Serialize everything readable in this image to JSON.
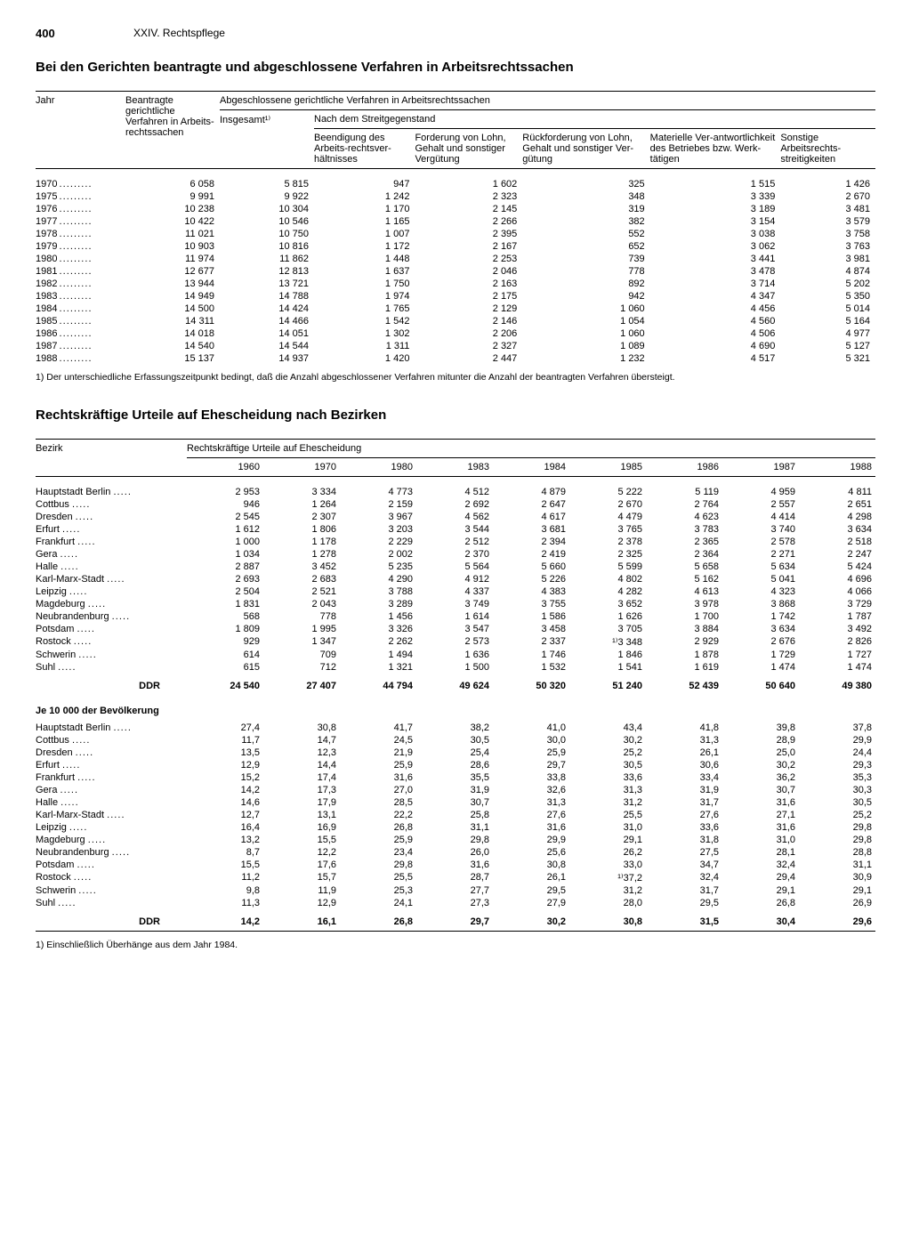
{
  "page_number": "400",
  "section": "XXIV. Rechtspflege",
  "table1": {
    "title": "Bei den Gerichten beantragte und abgeschlossene Verfahren in Arbeitsrechtssachen",
    "col_year": "Jahr",
    "col_beantragte": "Beantragte gerichtliche Verfahren in Arbeits-rechtssachen",
    "col_abgeschlossen": "Abgeschlossene gerichtliche Verfahren in Arbeitsrechtssachen",
    "col_insgesamt": "Insgesamt¹⁾",
    "col_nachdem": "Nach dem Streitgegenstand",
    "sub_beendigung": "Beendigung des Arbeits-rechtsver-hältnisses",
    "sub_forderung": "Forderung von Lohn, Gehalt und sonstiger Vergütung",
    "sub_rueckforderung": "Rückforderung von Lohn, Gehalt und sonstiger Ver-gütung",
    "sub_materielle": "Materielle Ver-antwortlichkeit des Betriebes bzw. Werk-tätigen",
    "sub_sonstige": "Sonstige Arbeitsrechts-streitigkeiten",
    "rows": [
      {
        "y": "1970",
        "c": [
          "6 058",
          "5 815",
          "947",
          "1 602",
          "325",
          "1 515",
          "1 426"
        ]
      },
      {
        "y": "1975",
        "c": [
          "9 991",
          "9 922",
          "1 242",
          "2 323",
          "348",
          "3 339",
          "2 670"
        ]
      },
      {
        "y": "1976",
        "c": [
          "10 238",
          "10 304",
          "1 170",
          "2 145",
          "319",
          "3 189",
          "3 481"
        ]
      },
      {
        "y": "1977",
        "c": [
          "10 422",
          "10 546",
          "1 165",
          "2 266",
          "382",
          "3 154",
          "3 579"
        ]
      },
      {
        "y": "1978",
        "c": [
          "11 021",
          "10 750",
          "1 007",
          "2 395",
          "552",
          "3 038",
          "3 758"
        ]
      },
      {
        "y": "1979",
        "c": [
          "10 903",
          "10 816",
          "1 172",
          "2 167",
          "652",
          "3 062",
          "3 763"
        ]
      },
      {
        "y": "1980",
        "c": [
          "11 974",
          "11 862",
          "1 448",
          "2 253",
          "739",
          "3 441",
          "3 981"
        ]
      },
      {
        "y": "1981",
        "c": [
          "12 677",
          "12 813",
          "1 637",
          "2 046",
          "778",
          "3 478",
          "4 874"
        ]
      },
      {
        "y": "1982",
        "c": [
          "13 944",
          "13 721",
          "1 750",
          "2 163",
          "892",
          "3 714",
          "5 202"
        ]
      },
      {
        "y": "1983",
        "c": [
          "14 949",
          "14 788",
          "1 974",
          "2 175",
          "942",
          "4 347",
          "5 350"
        ]
      },
      {
        "y": "1984",
        "c": [
          "14 500",
          "14 424",
          "1 765",
          "2 129",
          "1 060",
          "4 456",
          "5 014"
        ]
      },
      {
        "y": "1985",
        "c": [
          "14 311",
          "14 466",
          "1 542",
          "2 146",
          "1 054",
          "4 560",
          "5 164"
        ]
      },
      {
        "y": "1986",
        "c": [
          "14 018",
          "14 051",
          "1 302",
          "2 206",
          "1 060",
          "4 506",
          "4 977"
        ]
      },
      {
        "y": "1987",
        "c": [
          "14 540",
          "14 544",
          "1 311",
          "2 327",
          "1 089",
          "4 690",
          "5 127"
        ]
      },
      {
        "y": "1988",
        "c": [
          "15 137",
          "14 937",
          "1 420",
          "2 447",
          "1 232",
          "4 517",
          "5 321"
        ]
      }
    ],
    "footnote": "1) Der unterschiedliche Erfassungszeitpunkt bedingt, daß die Anzahl abgeschlossener Verfahren mitunter die Anzahl der beantragten Verfahren übersteigt."
  },
  "table2": {
    "title": "Rechtskräftige Urteile auf Ehescheidung nach Bezirken",
    "col_bezirk": "Bezirk",
    "col_group": "Rechtskräftige Urteile auf Ehescheidung",
    "years": [
      "1960",
      "1970",
      "1980",
      "1983",
      "1984",
      "1985",
      "1986",
      "1987",
      "1988"
    ],
    "rows_abs": [
      {
        "b": "Hauptstadt Berlin",
        "c": [
          "2 953",
          "3 334",
          "4 773",
          "4 512",
          "4 879",
          "5 222",
          "5 119",
          "4 959",
          "4 811"
        ]
      },
      {
        "b": "Cottbus",
        "c": [
          "946",
          "1 264",
          "2 159",
          "2 692",
          "2 647",
          "2 670",
          "2 764",
          "2 557",
          "2 651"
        ]
      },
      {
        "b": "Dresden",
        "c": [
          "2 545",
          "2 307",
          "3 967",
          "4 562",
          "4 617",
          "4 479",
          "4 623",
          "4 414",
          "4 298"
        ]
      },
      {
        "b": "Erfurt",
        "c": [
          "1 612",
          "1 806",
          "3 203",
          "3 544",
          "3 681",
          "3 765",
          "3 783",
          "3 740",
          "3 634"
        ]
      },
      {
        "b": "Frankfurt",
        "c": [
          "1 000",
          "1 178",
          "2 229",
          "2 512",
          "2 394",
          "2 378",
          "2 365",
          "2 578",
          "2 518"
        ]
      },
      {
        "b": "Gera",
        "c": [
          "1 034",
          "1 278",
          "2 002",
          "2 370",
          "2 419",
          "2 325",
          "2 364",
          "2 271",
          "2 247"
        ]
      },
      {
        "b": "Halle",
        "c": [
          "2 887",
          "3 452",
          "5 235",
          "5 564",
          "5 660",
          "5 599",
          "5 658",
          "5 634",
          "5 424"
        ]
      },
      {
        "b": "Karl-Marx-Stadt",
        "c": [
          "2 693",
          "2 683",
          "4 290",
          "4 912",
          "5 226",
          "4 802",
          "5 162",
          "5 041",
          "4 696"
        ]
      },
      {
        "b": "Leipzig",
        "c": [
          "2 504",
          "2 521",
          "3 788",
          "4 337",
          "4 383",
          "4 282",
          "4 613",
          "4 323",
          "4 066"
        ]
      },
      {
        "b": "Magdeburg",
        "c": [
          "1 831",
          "2 043",
          "3 289",
          "3 749",
          "3 755",
          "3 652",
          "3 978",
          "3 868",
          "3 729"
        ]
      },
      {
        "b": "Neubrandenburg",
        "c": [
          "568",
          "778",
          "1 456",
          "1 614",
          "1 586",
          "1 626",
          "1 700",
          "1 742",
          "1 787"
        ]
      },
      {
        "b": "Potsdam",
        "c": [
          "1 809",
          "1 995",
          "3 326",
          "3 547",
          "3 458",
          "3 705",
          "3 884",
          "3 634",
          "3 492"
        ]
      },
      {
        "b": "Rostock",
        "c": [
          "929",
          "1 347",
          "2 262",
          "2 573",
          "2 337",
          "¹⁾3 348",
          "2 929",
          "2 676",
          "2 826"
        ]
      },
      {
        "b": "Schwerin",
        "c": [
          "614",
          "709",
          "1 494",
          "1 636",
          "1 746",
          "1 846",
          "1 878",
          "1 729",
          "1 727"
        ]
      },
      {
        "b": "Suhl",
        "c": [
          "615",
          "712",
          "1 321",
          "1 500",
          "1 532",
          "1 541",
          "1 619",
          "1 474",
          "1 474"
        ]
      }
    ],
    "total_label": "DDR",
    "total_abs": [
      "24 540",
      "27 407",
      "44 794",
      "49 624",
      "50 320",
      "51 240",
      "52 439",
      "50 640",
      "49 380"
    ],
    "subhead": "Je 10 000 der Bevölkerung",
    "rows_rel": [
      {
        "b": "Hauptstadt Berlin",
        "c": [
          "27,4",
          "30,8",
          "41,7",
          "38,2",
          "41,0",
          "43,4",
          "41,8",
          "39,8",
          "37,8"
        ]
      },
      {
        "b": "Cottbus",
        "c": [
          "11,7",
          "14,7",
          "24,5",
          "30,5",
          "30,0",
          "30,2",
          "31,3",
          "28,9",
          "29,9"
        ]
      },
      {
        "b": "Dresden",
        "c": [
          "13,5",
          "12,3",
          "21,9",
          "25,4",
          "25,9",
          "25,2",
          "26,1",
          "25,0",
          "24,4"
        ]
      },
      {
        "b": "Erfurt",
        "c": [
          "12,9",
          "14,4",
          "25,9",
          "28,6",
          "29,7",
          "30,5",
          "30,6",
          "30,2",
          "29,3"
        ]
      },
      {
        "b": "Frankfurt",
        "c": [
          "15,2",
          "17,4",
          "31,6",
          "35,5",
          "33,8",
          "33,6",
          "33,4",
          "36,2",
          "35,3"
        ]
      },
      {
        "b": "Gera",
        "c": [
          "14,2",
          "17,3",
          "27,0",
          "31,9",
          "32,6",
          "31,3",
          "31,9",
          "30,7",
          "30,3"
        ]
      },
      {
        "b": "Halle",
        "c": [
          "14,6",
          "17,9",
          "28,5",
          "30,7",
          "31,3",
          "31,2",
          "31,7",
          "31,6",
          "30,5"
        ]
      },
      {
        "b": "Karl-Marx-Stadt",
        "c": [
          "12,7",
          "13,1",
          "22,2",
          "25,8",
          "27,6",
          "25,5",
          "27,6",
          "27,1",
          "25,2"
        ]
      },
      {
        "b": "Leipzig",
        "c": [
          "16,4",
          "16,9",
          "26,8",
          "31,1",
          "31,6",
          "31,0",
          "33,6",
          "31,6",
          "29,8"
        ]
      },
      {
        "b": "Magdeburg",
        "c": [
          "13,2",
          "15,5",
          "25,9",
          "29,8",
          "29,9",
          "29,1",
          "31,8",
          "31,0",
          "29,8"
        ]
      },
      {
        "b": "Neubrandenburg",
        "c": [
          "8,7",
          "12,2",
          "23,4",
          "26,0",
          "25,6",
          "26,2",
          "27,5",
          "28,1",
          "28,8"
        ]
      },
      {
        "b": "Potsdam",
        "c": [
          "15,5",
          "17,6",
          "29,8",
          "31,6",
          "30,8",
          "33,0",
          "34,7",
          "32,4",
          "31,1"
        ]
      },
      {
        "b": "Rostock",
        "c": [
          "11,2",
          "15,7",
          "25,5",
          "28,7",
          "26,1",
          "¹⁾37,2",
          "32,4",
          "29,4",
          "30,9"
        ]
      },
      {
        "b": "Schwerin",
        "c": [
          "9,8",
          "11,9",
          "25,3",
          "27,7",
          "29,5",
          "31,2",
          "31,7",
          "29,1",
          "29,1"
        ]
      },
      {
        "b": "Suhl",
        "c": [
          "11,3",
          "12,9",
          "24,1",
          "27,3",
          "27,9",
          "28,0",
          "29,5",
          "26,8",
          "26,9"
        ]
      }
    ],
    "total_rel": [
      "14,2",
      "16,1",
      "26,8",
      "29,7",
      "30,2",
      "30,8",
      "31,5",
      "30,4",
      "29,6"
    ],
    "footnote": "1) Einschließlich Überhänge aus dem Jahr 1984."
  }
}
